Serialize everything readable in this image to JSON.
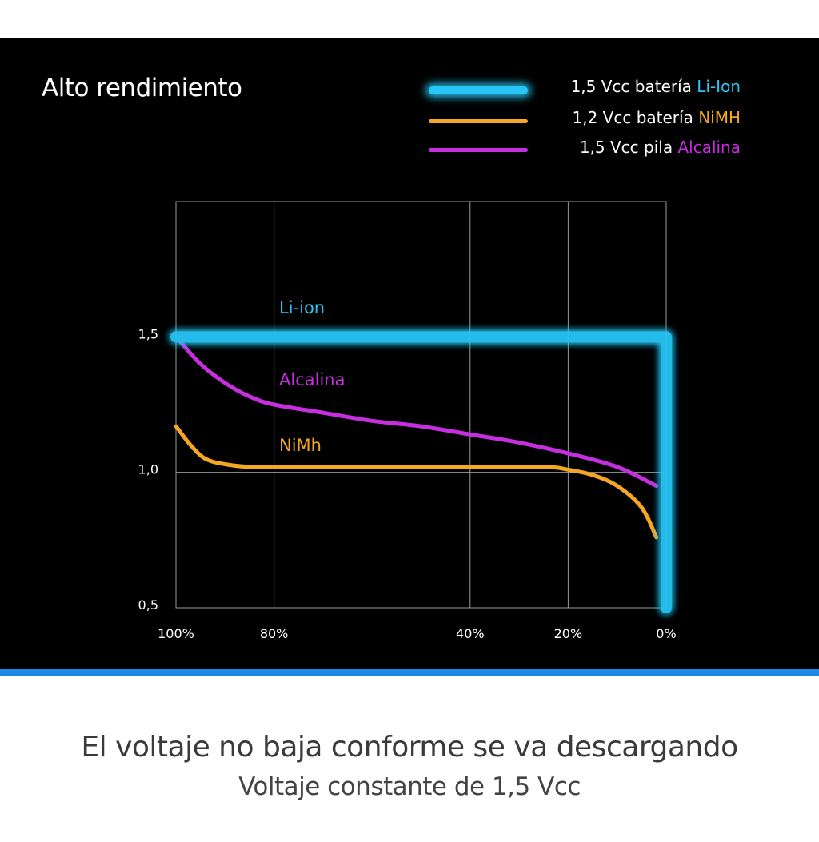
{
  "legend": [
    {
      "prefix": "1,5 Vcc batería ",
      "highlight": "Li-Ion",
      "color": "#27c6f5"
    },
    {
      "prefix": "1,2 Vcc batería ",
      "highlight": "NiMH",
      "color": "#f5a623"
    },
    {
      "prefix": "1,5 Vcc pila ",
      "highlight": "Alcalina",
      "color": "#c62ee0"
    }
  ],
  "footer": {
    "headline": "El voltaje no baja conforme se va descargando",
    "subline": "Voltaje constante de 1,5 Vcc"
  },
  "chart_data": {
    "type": "line",
    "title": "Alto rendimiento",
    "xlabel": "",
    "ylabel": "",
    "x_ticks": [
      "100%",
      "80%",
      "40%",
      "20%",
      "0%"
    ],
    "x_tick_values": [
      100,
      80,
      40,
      20,
      0
    ],
    "y_ticks": [
      "1,5",
      "1,0",
      "0,5"
    ],
    "y_tick_values": [
      1.5,
      1.0,
      0.5
    ],
    "xlim": [
      100,
      0
    ],
    "ylim": [
      0.5,
      2.0
    ],
    "grid": true,
    "legend_position": "top-right",
    "series": [
      {
        "name": "Li-ion",
        "color": "#27c6f5",
        "x": [
          100,
          0,
          0
        ],
        "y": [
          1.5,
          1.5,
          0.5
        ]
      },
      {
        "name": "Alcalina",
        "color": "#c62ee0",
        "x": [
          99,
          95,
          90,
          85,
          80,
          70,
          60,
          50,
          40,
          30,
          20,
          10,
          2
        ],
        "y": [
          1.48,
          1.4,
          1.33,
          1.28,
          1.25,
          1.22,
          1.19,
          1.17,
          1.14,
          1.11,
          1.07,
          1.02,
          0.95
        ]
      },
      {
        "name": "NiMh",
        "color": "#f5a623",
        "x": [
          100,
          97,
          94,
          90,
          85,
          80,
          60,
          40,
          25,
          20,
          15,
          10,
          5,
          2
        ],
        "y": [
          1.17,
          1.1,
          1.05,
          1.03,
          1.02,
          1.02,
          1.02,
          1.02,
          1.02,
          1.01,
          0.99,
          0.95,
          0.87,
          0.76
        ]
      }
    ]
  }
}
